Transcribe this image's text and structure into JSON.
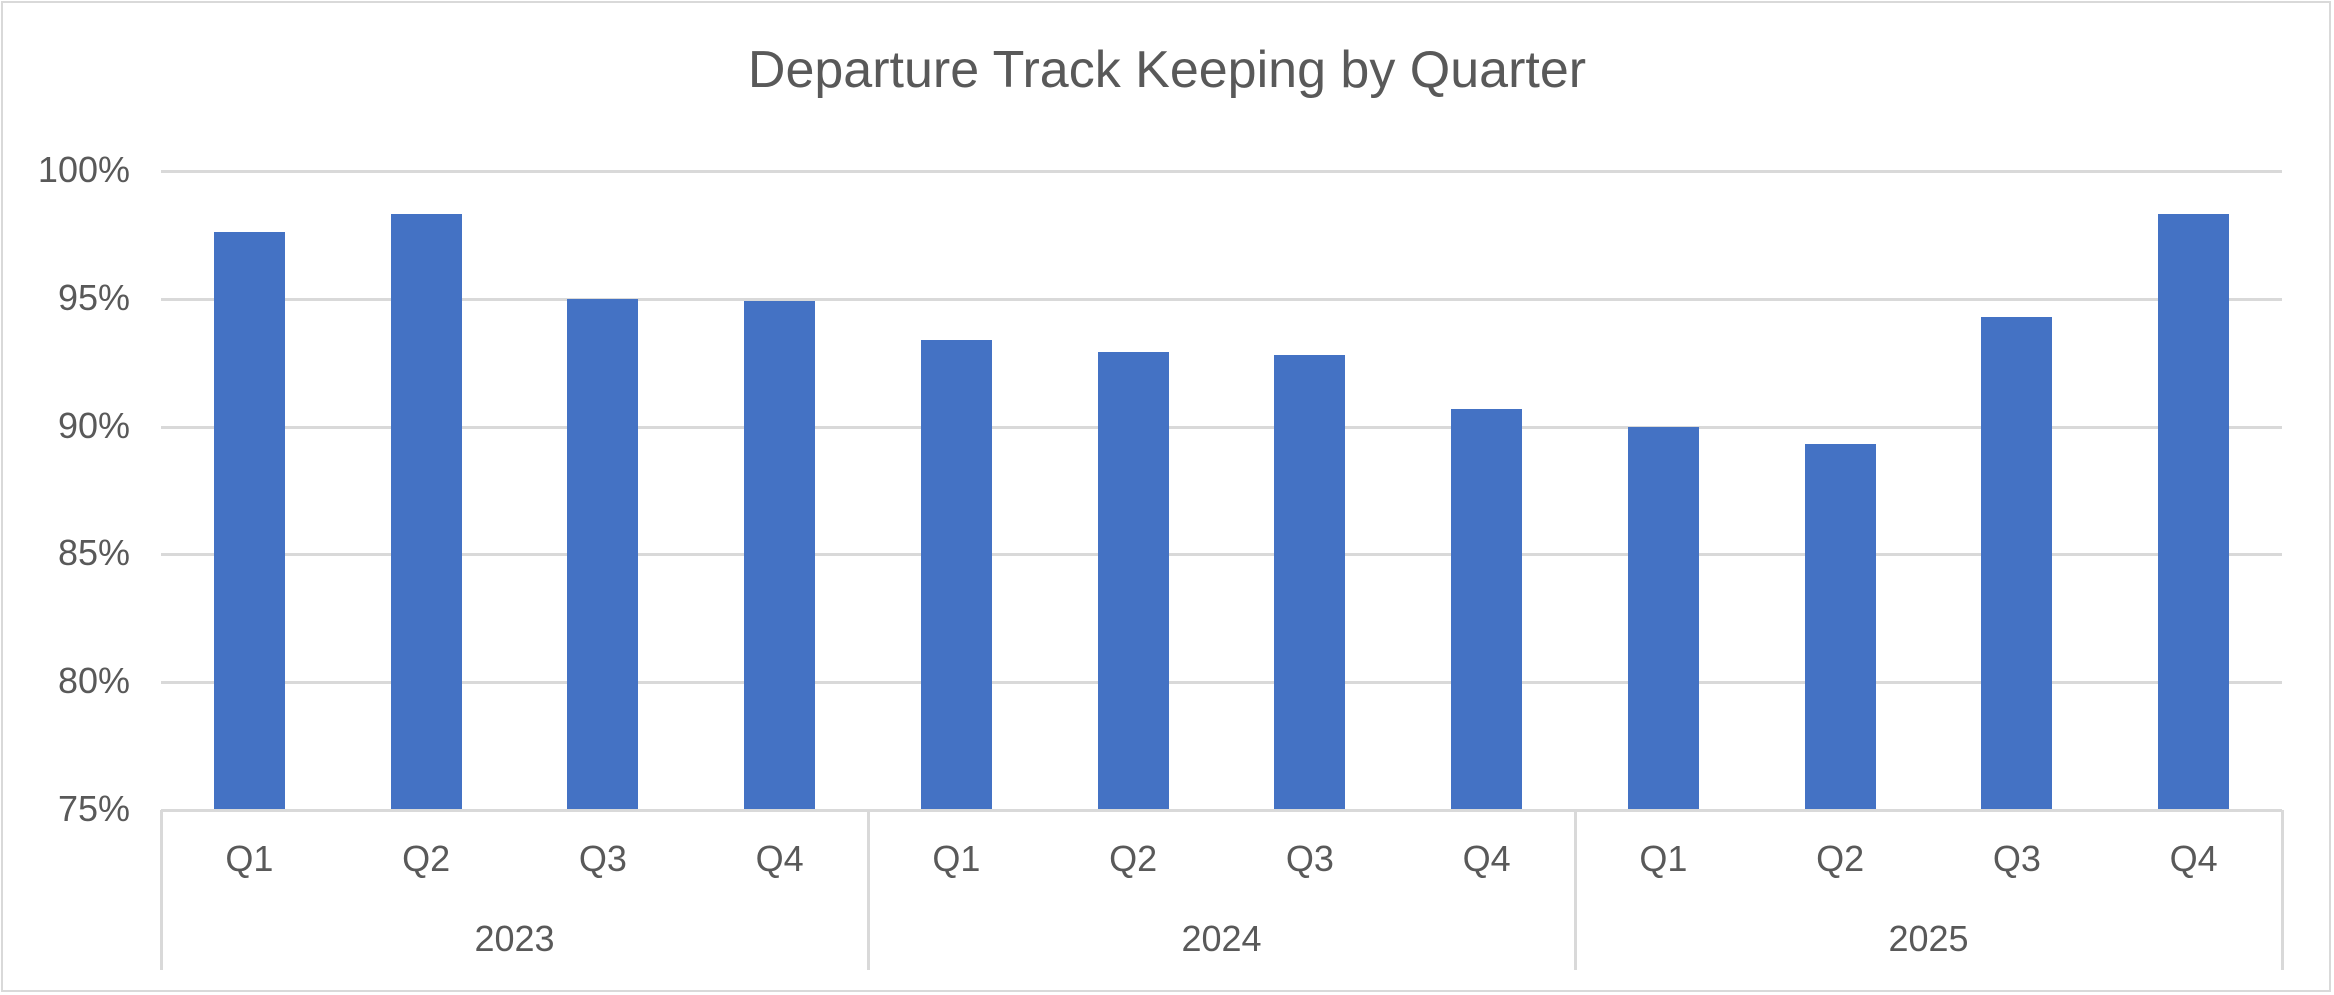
{
  "chart_data": {
    "type": "bar",
    "title": "Departure Track Keeping by Quarter",
    "xlabel": "",
    "ylabel": "",
    "ylim": [
      0.75,
      1.0
    ],
    "yticks": [
      "75%",
      "80%",
      "85%",
      "90%",
      "95%",
      "100%"
    ],
    "grid": true,
    "legend": "none",
    "groups": [
      {
        "label": "2023",
        "categories": [
          "Q1",
          "Q2",
          "Q3",
          "Q4"
        ]
      },
      {
        "label": "2024",
        "categories": [
          "Q1",
          "Q2",
          "Q3",
          "Q4"
        ]
      },
      {
        "label": "2025",
        "categories": [
          "Q1",
          "Q2",
          "Q3",
          "Q4"
        ]
      }
    ],
    "categories": [
      "2023 Q1",
      "2023 Q2",
      "2023 Q3",
      "2023 Q4",
      "2024 Q1",
      "2024 Q2",
      "2024 Q3",
      "2024 Q4",
      "2025 Q1",
      "2025 Q2",
      "2025 Q3",
      "2025 Q4"
    ],
    "series": [
      {
        "name": "Departure Track Keeping",
        "color": "#4472c4",
        "values": [
          0.976,
          0.983,
          0.95,
          0.949,
          0.934,
          0.929,
          0.928,
          0.907,
          0.9,
          0.893,
          0.943,
          0.983
        ]
      }
    ]
  },
  "colors": {
    "bar": "#4472c4",
    "grid": "#d9d9d9",
    "text": "#595959"
  }
}
